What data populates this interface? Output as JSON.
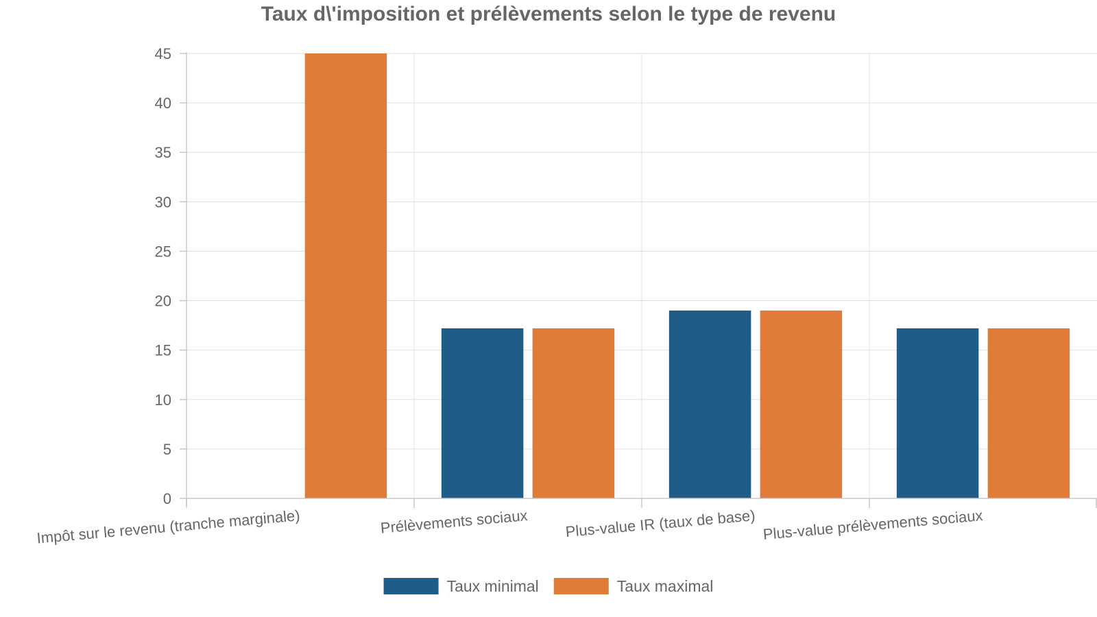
{
  "chart_data": {
    "type": "bar",
    "title": "Taux d\\'imposition et prélèvements selon le type de revenu",
    "xlabel": "",
    "ylabel": "",
    "categories": [
      "Impôt sur le revenu (tranche marginale)",
      "Prélèvements sociaux",
      "Plus-value IR (taux de base)",
      "Plus-value prélèvements sociaux"
    ],
    "series": [
      {
        "name": "Taux minimal",
        "values": [
          0,
          17.2,
          19,
          17.2
        ],
        "color": "#1f5c87"
      },
      {
        "name": "Taux maximal",
        "values": [
          45,
          17.2,
          19,
          17.2
        ],
        "color": "#e07b39"
      }
    ],
    "ylim": [
      0,
      45
    ],
    "yticks": [
      0,
      5,
      10,
      15,
      20,
      25,
      30,
      35,
      40,
      45
    ],
    "grid": true,
    "legend_position": "bottom-center"
  }
}
